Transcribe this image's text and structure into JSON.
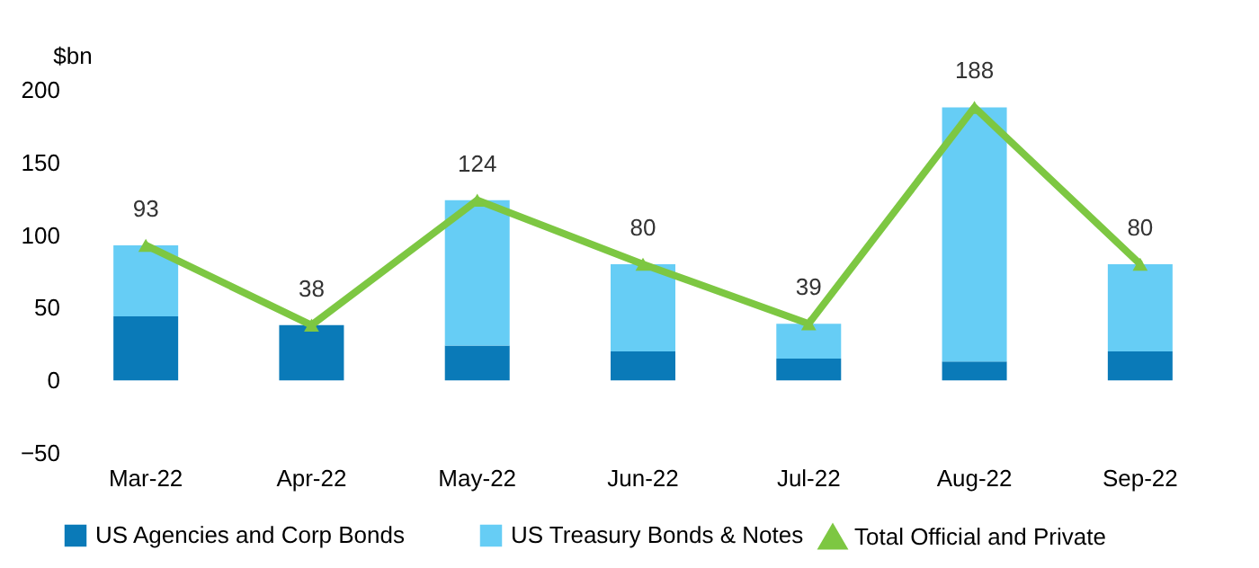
{
  "chart_data": {
    "type": "bar",
    "stacked": true,
    "ylabel": "$bn",
    "categories": [
      "Mar-22",
      "Apr-22",
      "May-22",
      "Jun-22",
      "Jul-22",
      "Aug-22",
      "Sep-22"
    ],
    "series": [
      {
        "name": "US Agencies and Corp Bonds",
        "color": "#0a7ab8",
        "values": [
          44,
          38,
          24,
          20,
          15,
          13,
          20
        ]
      },
      {
        "name": "US Treasury Bonds & Notes",
        "color": "#66cdf5",
        "values": [
          49,
          0,
          100,
          60,
          24,
          175,
          60
        ]
      },
      {
        "name": "Total Official and Private",
        "type": "line",
        "color": "#7dc742",
        "marker": "triangle",
        "values": [
          93,
          38,
          124,
          80,
          39,
          188,
          80
        ],
        "value_labels": [
          "93",
          "38",
          "124",
          "80",
          "39",
          "188",
          "80"
        ]
      }
    ],
    "ylim": [
      -50,
      200
    ],
    "yticks": [
      -50,
      0,
      50,
      100,
      150,
      200
    ],
    "grid": false,
    "legend": "bottom"
  }
}
